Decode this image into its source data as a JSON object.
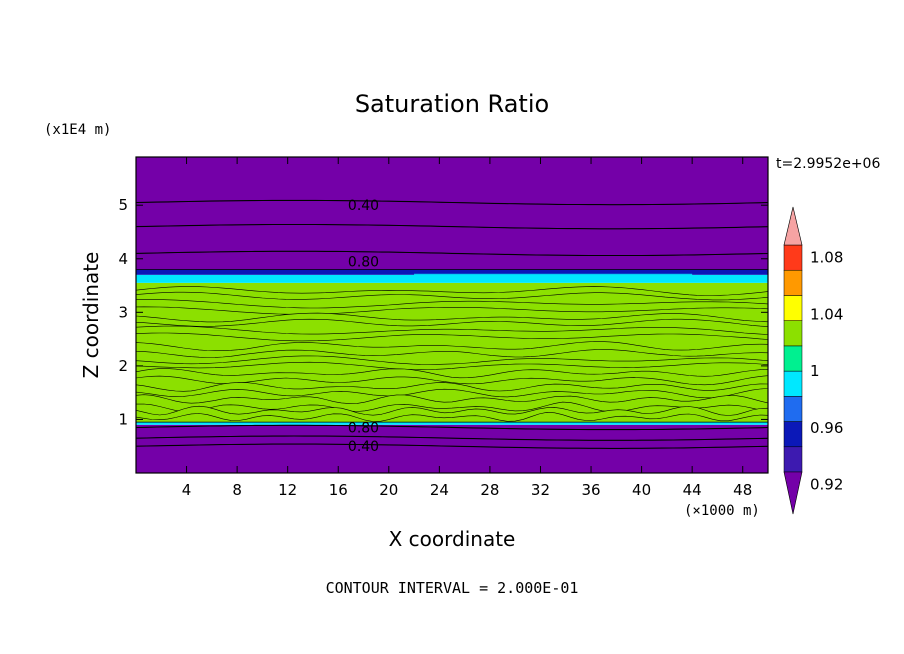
{
  "chart_data": {
    "type": "heatmap",
    "title": "Saturation Ratio",
    "xlabel": "X coordinate",
    "ylabel": "Z coordinate",
    "x_unit": "(×1000 m)",
    "y_unit": "(x1E4 m)",
    "timestamp": "t=2.9952e+06",
    "footer": "CONTOUR INTERVAL = 2.000E-01",
    "xlim": [
      0,
      50
    ],
    "ylim": [
      0,
      5.9
    ],
    "x_ticks": [
      4,
      8,
      12,
      16,
      20,
      24,
      28,
      32,
      36,
      40,
      44,
      48
    ],
    "y_ticks": [
      1,
      2,
      3,
      4,
      5
    ],
    "colorbar": {
      "levels": [
        0.9,
        0.92,
        0.94,
        0.96,
        0.98,
        1.0,
        1.02,
        1.04,
        1.06,
        1.08,
        1.1
      ],
      "tick_labels": [
        "0.92",
        "0.96",
        "1",
        "1.04",
        "1.08"
      ],
      "tick_values": [
        0.92,
        0.96,
        1.0,
        1.04,
        1.08
      ],
      "colors": [
        "#7400a8",
        "#3d1ab0",
        "#0b18b8",
        "#1f6cf0",
        "#00e8ff",
        "#00f090",
        "#8ce000",
        "#ffff00",
        "#ff9900",
        "#ff3a1a",
        "#f6a3a3"
      ],
      "extend": "both"
    },
    "contour_labels": [
      {
        "text": "0.40",
        "x": 18,
        "z": 5.0
      },
      {
        "text": "0.80",
        "x": 18,
        "z": 3.95
      },
      {
        "text": "0.80",
        "x": 18,
        "z": 0.85
      },
      {
        "text": "0.40",
        "x": 18,
        "z": 0.5
      }
    ],
    "contour_lines_z": [
      5.05,
      4.6,
      4.1,
      0.85,
      0.65,
      0.5
    ],
    "bands": [
      {
        "z0": 0.0,
        "z1": 0.9,
        "value": 0.4
      },
      {
        "z0": 0.9,
        "z1": 0.95,
        "value": 0.97
      },
      {
        "z0": 0.95,
        "z1": 3.55,
        "value": 1.0
      },
      {
        "z0": 3.55,
        "z1": 3.7,
        "value": 0.97
      },
      {
        "z0": 3.7,
        "z1": 3.8,
        "value": 0.93
      },
      {
        "z0": 3.8,
        "z1": 5.9,
        "value": 0.4
      }
    ]
  }
}
